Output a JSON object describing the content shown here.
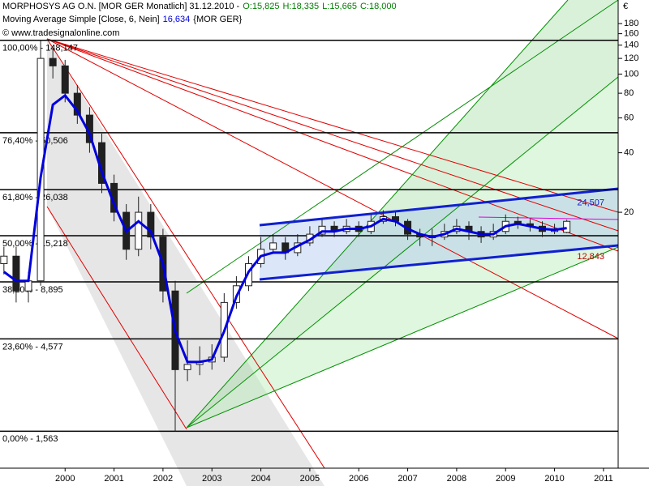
{
  "chart_data": {
    "type": "candlestick",
    "title": "MORPHOSYS AG O.N. [MOR GER  Monatlich] 31.12.2010 -",
    "ohlc_text": [
      {
        "text": "O:15,825",
        "color": "#008000"
      },
      {
        "text": "H:18,335",
        "color": "#008000"
      },
      {
        "text": "L:15,665",
        "color": "#008000"
      },
      {
        "text": "C:18,000",
        "color": "#008000"
      }
    ],
    "indicator_label": "Moving Average Simple [Close, 6, Nein]",
    "indicator_value": "16,634",
    "indicator_suffix": "{MOR GER}",
    "copyright": "© www.tradesignalonline.com",
    "currency": "€",
    "log_scale": true,
    "ylim": [
      1.016,
      226
    ],
    "yticks": [
      20,
      40,
      60,
      80,
      100,
      120,
      140,
      160,
      180
    ],
    "xlim": [
      1999.17,
      2011.8
    ],
    "xticks": [
      {
        "value": 2000.5,
        "label": "2000"
      },
      {
        "value": 2001.5,
        "label": "2001"
      },
      {
        "value": 2002.5,
        "label": "2002"
      },
      {
        "value": 2003.5,
        "label": "2003"
      },
      {
        "value": 2004.5,
        "label": "2004"
      },
      {
        "value": 2005.5,
        "label": "2005"
      },
      {
        "value": 2006.5,
        "label": "2006"
      },
      {
        "value": 2007.5,
        "label": "2007"
      },
      {
        "value": 2008.5,
        "label": "2008"
      },
      {
        "value": 2009.5,
        "label": "2009"
      },
      {
        "value": 2010.5,
        "label": "2010"
      },
      {
        "value": 2011.5,
        "label": "2011"
      }
    ],
    "up_color": "#ffffff",
    "down_color": "#202020",
    "x": [
      1999.25,
      1999.5,
      1999.75,
      2000,
      2000.25,
      2000.5,
      2000.75,
      2001,
      2001.25,
      2001.5,
      2001.75,
      2002,
      2002.25,
      2002.5,
      2002.75,
      2003,
      2003.25,
      2003.5,
      2003.75,
      2004,
      2004.25,
      2004.5,
      2004.75,
      2005,
      2005.25,
      2005.5,
      2005.75,
      2006,
      2006.25,
      2006.5,
      2006.75,
      2007,
      2007.25,
      2007.5,
      2007.75,
      2008,
      2008.25,
      2008.5,
      2008.75,
      2009,
      2009.25,
      2009.5,
      2009.75,
      2010,
      2010.25,
      2010.5,
      2010.75
    ],
    "open": [
      11,
      12,
      8,
      9,
      120,
      110,
      80,
      62,
      45,
      28,
      20,
      13,
      20,
      15,
      8,
      3.2,
      3.4,
      3.5,
      3.7,
      7,
      8.5,
      11,
      13,
      14,
      12.5,
      14,
      15.5,
      17,
      16,
      17,
      16,
      18,
      19,
      18,
      15.5,
      15,
      15,
      16,
      17,
      16,
      15,
      16,
      18,
      17.5,
      17,
      16,
      15.825
    ],
    "high": [
      13.4,
      13.4,
      10,
      148.147,
      135,
      118,
      88,
      68,
      50,
      31,
      22,
      24,
      22,
      16.5,
      9,
      4.5,
      4.2,
      4.3,
      7.8,
      9.5,
      12,
      15,
      15.5,
      15,
      15.5,
      17,
      18.5,
      18,
      18.5,
      18,
      19.5,
      20.5,
      20,
      18.5,
      16.5,
      16.5,
      17.5,
      18.5,
      18,
      17,
      17.5,
      19.5,
      19,
      18.5,
      18,
      17.5,
      18.335
    ],
    "low": [
      9.7,
      7,
      7,
      8.5,
      95,
      72,
      56,
      40,
      25,
      18,
      11.5,
      12,
      13,
      7,
      1.563,
      2.8,
      3,
      3.2,
      3.5,
      6.5,
      8,
      10.5,
      12.5,
      11.5,
      12,
      13.5,
      15,
      15,
      15.5,
      15,
      15.5,
      17.5,
      17,
      14.5,
      13.5,
      13.5,
      14.5,
      15.5,
      14.5,
      14,
      14.5,
      15.5,
      16.5,
      16,
      15,
      15.5,
      15.665
    ],
    "close": [
      12,
      8,
      9,
      120,
      110,
      80,
      62,
      45,
      28,
      20,
      13,
      20,
      15,
      8,
      3.2,
      3.4,
      3.5,
      3.7,
      7,
      8.5,
      11,
      13,
      14,
      12.5,
      14,
      15.5,
      17,
      16,
      17,
      16,
      18,
      19,
      18,
      15.5,
      15,
      15,
      16,
      17,
      16,
      15,
      16,
      18,
      17.5,
      17,
      16,
      16.5,
      18
    ],
    "moving_average": {
      "color": "#0000dd",
      "values": [
        10,
        9,
        9,
        30,
        70,
        78,
        65,
        50,
        32,
        22,
        16,
        18,
        16,
        11,
        5,
        3.5,
        3.5,
        3.6,
        5,
        7.5,
        10,
        12,
        12.5,
        12.5,
        13.5,
        14.5,
        16,
        16,
        16.5,
        16.5,
        17,
        18.5,
        18,
        16.5,
        15.5,
        15,
        15.5,
        16.5,
        16,
        15.5,
        15.5,
        17,
        17.5,
        17,
        16.5,
        16.3,
        16.634
      ]
    },
    "levels": [
      {
        "value": 148.147,
        "label": "100,00% - 148,147"
      },
      {
        "value": 50.506,
        "label": "76,40% - 50,506"
      },
      {
        "value": 26.038,
        "label": "61,80% - 26,038"
      },
      {
        "value": 15.218,
        "label": "50,00% - 15,218"
      },
      {
        "value": 8.895,
        "label": "38,20% - 8,895"
      },
      {
        "value": 4.577,
        "label": "23,60% - 4,577"
      },
      {
        "value": 1.563,
        "label": "0,00% - 1,563"
      }
    ],
    "channel_labels": [
      {
        "value": 24.507,
        "label": "24,507"
      },
      {
        "value": 12.843,
        "label": "12,843"
      }
    ]
  }
}
